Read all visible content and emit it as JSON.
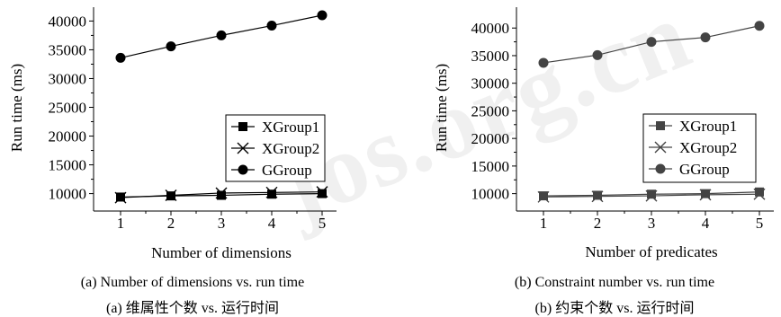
{
  "watermark": "jos.org.cn",
  "chart_data": [
    {
      "type": "line",
      "xlabel": "Number of dimensions",
      "ylabel": "Run time (ms)",
      "categories": [
        1,
        2,
        3,
        4,
        5
      ],
      "ylim": [
        9000,
        41000
      ],
      "yticks": [
        10000,
        15000,
        20000,
        25000,
        30000,
        35000,
        40000
      ],
      "legend_position": "bottom-right",
      "series": [
        {
          "name": "XGroup1",
          "marker": "square",
          "color": "#000000",
          "values": [
            9400,
            9600,
            9700,
            9900,
            10000
          ]
        },
        {
          "name": "XGroup2",
          "marker": "x",
          "color": "#000000",
          "values": [
            9300,
            9700,
            10100,
            10200,
            10300
          ]
        },
        {
          "name": "GGroup",
          "marker": "circle",
          "color": "#000000",
          "values": [
            33600,
            35600,
            37500,
            39200,
            41000
          ]
        }
      ],
      "caption_en": "(a) Number of dimensions vs. run time",
      "caption_cn": "(a)  维属性个数  vs.  运行时间"
    },
    {
      "type": "line",
      "xlabel": "Number of predicates",
      "ylabel": "Run time (ms)",
      "categories": [
        1,
        2,
        3,
        4,
        5
      ],
      "ylim": [
        8800,
        41500
      ],
      "yticks": [
        10000,
        15000,
        20000,
        25000,
        30000,
        35000,
        40000
      ],
      "legend_position": "bottom-right",
      "series": [
        {
          "name": "XGroup1",
          "marker": "square",
          "color": "#444444",
          "values": [
            9600,
            9700,
            9900,
            10000,
            10300
          ]
        },
        {
          "name": "XGroup2",
          "marker": "x",
          "color": "#444444",
          "values": [
            9400,
            9500,
            9600,
            9800,
            9900
          ]
        },
        {
          "name": "GGroup",
          "marker": "circle",
          "color": "#444444",
          "values": [
            33700,
            35100,
            37500,
            38300,
            40400
          ]
        }
      ],
      "caption_en": "(b) Constraint number vs. run time",
      "caption_cn": "(b)  约束个数  vs.  运行时间"
    }
  ]
}
